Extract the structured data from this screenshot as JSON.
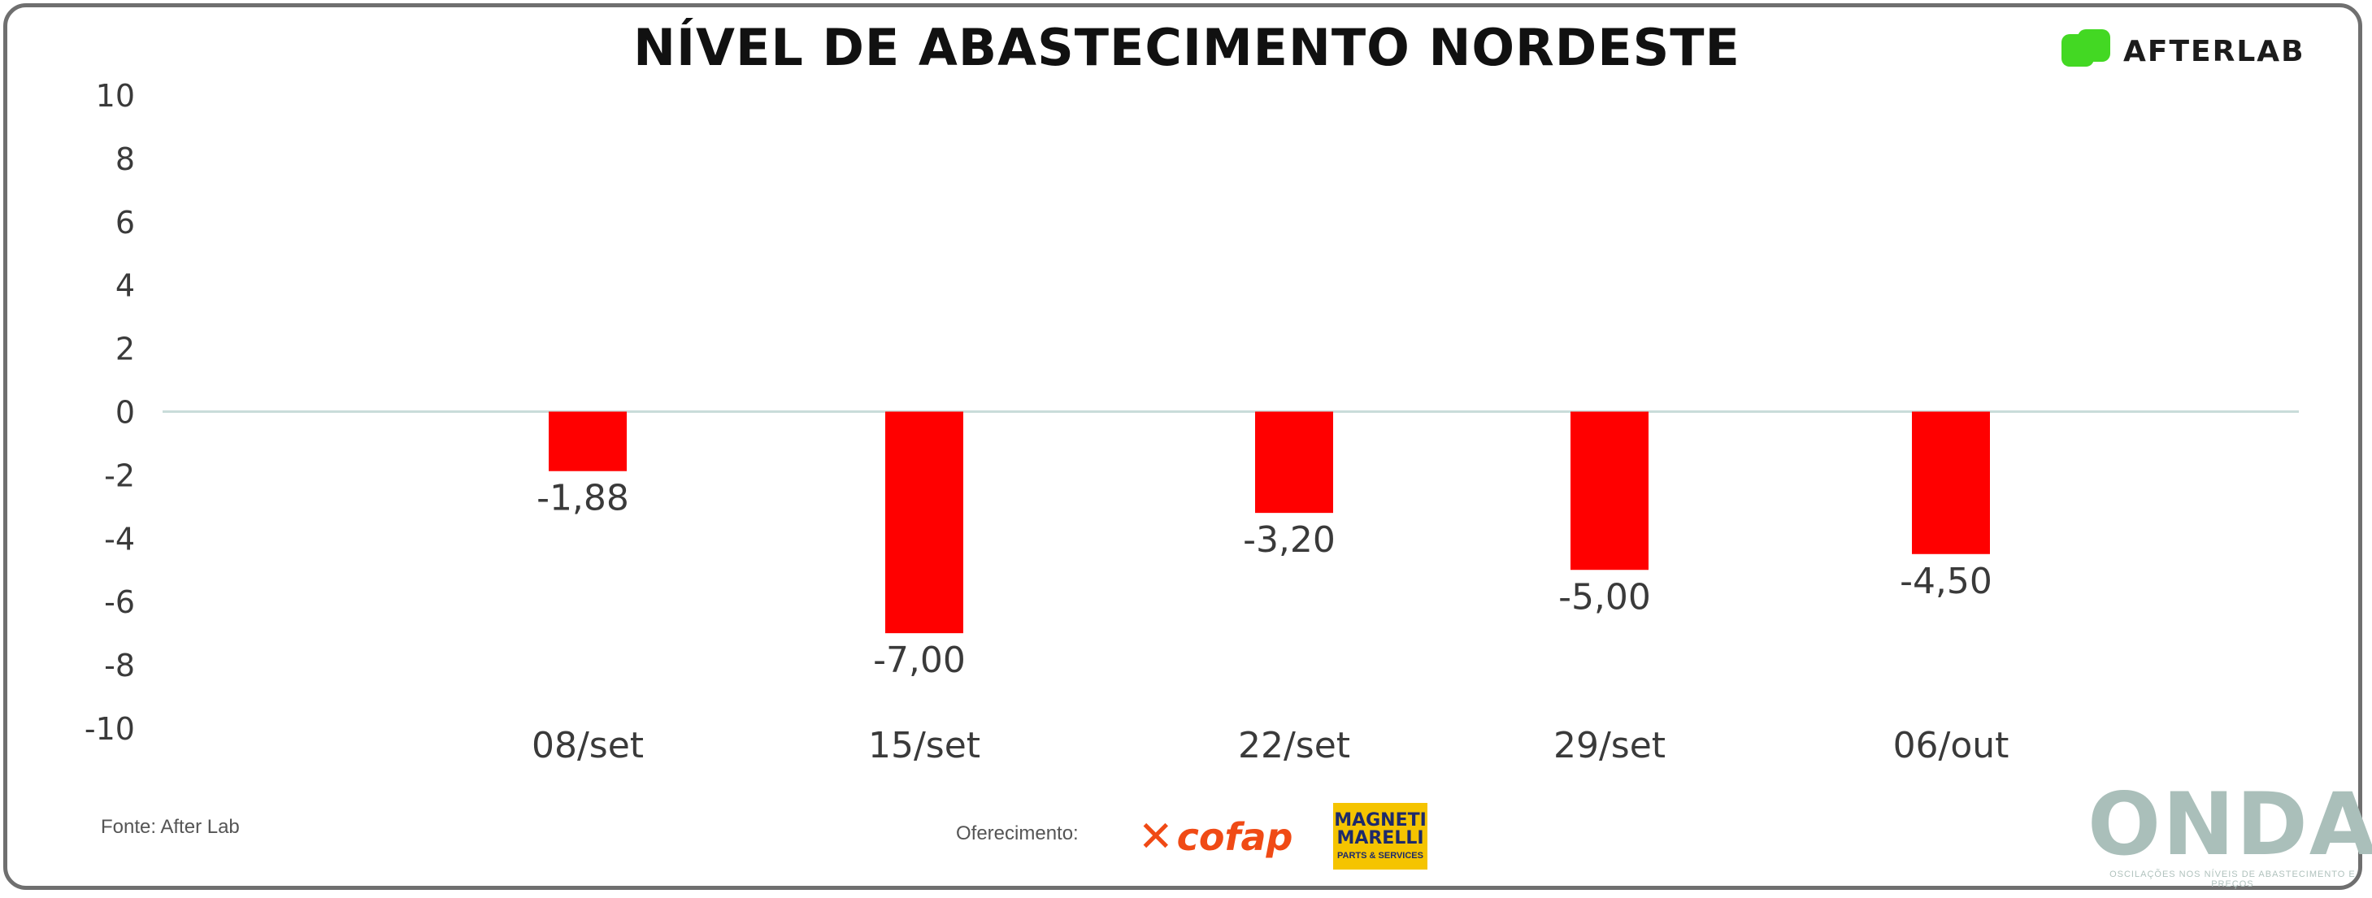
{
  "header": {
    "title": "NÍVEL DE ABASTECIMENTO NORDESTE",
    "brand": "AFTERLAB"
  },
  "footer": {
    "source": "Fonte: After Lab",
    "sponsor_label": "Oferecimento:",
    "sponsor1": "cofap",
    "sponsor2_line1": "MAGNETI",
    "sponsor2_line2": "MARELLI",
    "sponsor2_tag": "PARTS & SERVICES",
    "onda": "ONDA",
    "onda_tagline": "OSCILAÇÕES NOS NÍVEIS DE ABASTECIMENTO E PREÇOS"
  },
  "colors": {
    "bar": "#ff0000",
    "zero_line": "#c9dcda",
    "text": "#3a3a3a"
  },
  "chart_data": {
    "type": "bar",
    "title": "NÍVEL DE ABASTECIMENTO NORDESTE",
    "categories": [
      "08/set",
      "15/set",
      "22/set",
      "29/set",
      "06/out"
    ],
    "values": [
      -1.88,
      -7.0,
      -3.2,
      -5.0,
      -4.5
    ],
    "data_labels": [
      "-1,88",
      "-7,00",
      "-3,20",
      "-5,00",
      "-4,50"
    ],
    "ylim": [
      -10,
      10
    ],
    "yticks": [
      10,
      8,
      6,
      4,
      2,
      0,
      -2,
      -4,
      -6,
      -8,
      -10
    ],
    "xlabel": "",
    "ylabel": "",
    "grid": false,
    "legend": "none"
  }
}
